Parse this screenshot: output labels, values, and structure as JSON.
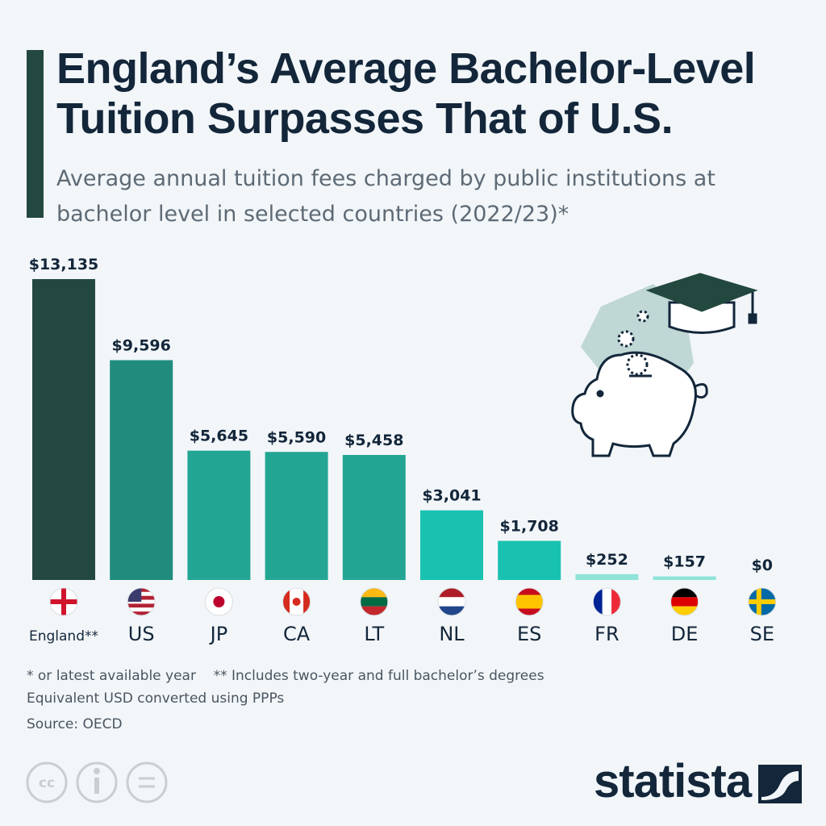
{
  "chart_data": {
    "type": "bar",
    "title": "England’s Average Bachelor-Level Tuition Surpasses That of U.S.",
    "subtitle": "Average annual tuition fees charged by public institutions at bachelor level in selected countries (2022/23)*",
    "categories": [
      "England**",
      "US",
      "JP",
      "CA",
      "LT",
      "NL",
      "ES",
      "FR",
      "DE",
      "SE"
    ],
    "values": [
      13135,
      9596,
      5645,
      5590,
      5458,
      3041,
      1708,
      252,
      157,
      0
    ],
    "value_labels": [
      "$13,135",
      "$9,596",
      "$5,645",
      "$5,590",
      "$5,458",
      "$3,041",
      "$1,708",
      "$252",
      "$157",
      "$0"
    ],
    "colors": [
      "#23483f",
      "#1f8c7e",
      "#23a594",
      "#23a594",
      "#23a594",
      "#19c2b0",
      "#19c2b0",
      "#8fe3d8",
      "#8fe3d8",
      "#8fe3d8"
    ],
    "notes": [
      "* or latest available year",
      "** Includes two-year and full bachelor’s degrees",
      "Equivalent USD converted using PPPs"
    ],
    "source": "Source: OECD",
    "brand": "statista"
  }
}
